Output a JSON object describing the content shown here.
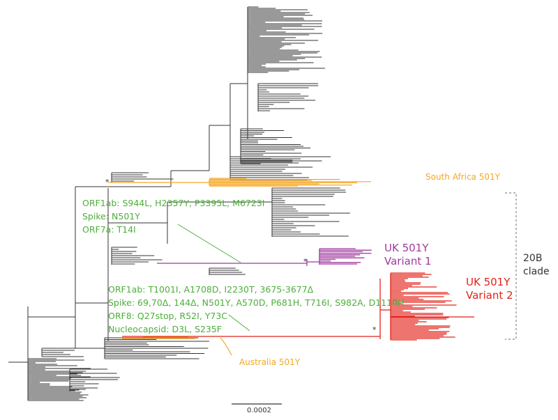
{
  "labels": {
    "south_africa": "South Africa 501Y",
    "australia": "Australia 501Y",
    "uk_v1_line1": "UK 501Y",
    "uk_v1_line2": "Variant 1",
    "uk_v2_line1": "UK 501Y",
    "uk_v2_line2": "Variant 2",
    "clade_line1": "20B",
    "clade_line2": "clade",
    "scale": "0.0002",
    "star": "*"
  },
  "annotation_v1": {
    "line1": "ORF1ab: S944L, H2357Y, P3395L, M6723I",
    "line2": "Spike: N501Y",
    "line3": "ORF7a: T14I"
  },
  "annotation_v2": {
    "line1": "ORF1ab: T1001I, A1708D, I2230T, 3675-3677Δ",
    "line2": "Spike: 69,70Δ, 144Δ, N501Y, A570D, P681H, T716I, S982A, D1118H",
    "line3": "ORF8: Q27stop, R52I, Y73C",
    "line4": "Nucleocapsid: D3L, S235F"
  },
  "colors": {
    "tree": "#333333",
    "south_africa": "#f5a623",
    "australia": "#f5a623",
    "uk_variant1": "#a1389e",
    "uk_variant2": "#e32119",
    "annotation": "#4cae3a",
    "clade_bracket": "#888888"
  }
}
